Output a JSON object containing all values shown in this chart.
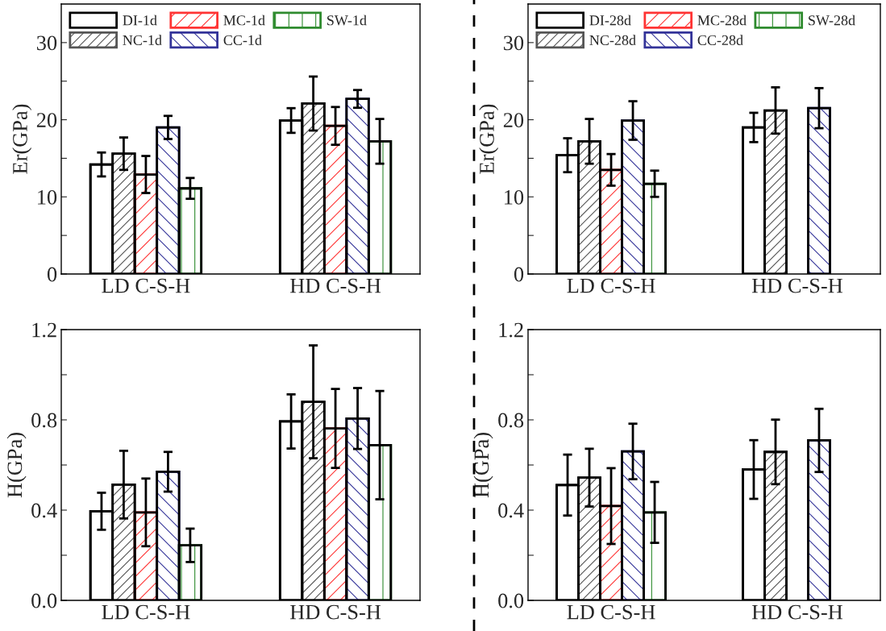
{
  "chart_data": [
    {
      "type": "bar",
      "ylabel": "Er(GPa)",
      "categories": [
        "LD C-S-H",
        "HD C-S-H"
      ],
      "ylim": [
        0,
        35
      ],
      "yticks": [
        0,
        {
          "value": 5,
          "label": null
        },
        10,
        {
          "value": 15,
          "label": null
        },
        20,
        {
          "value": 25,
          "label": null
        },
        30
      ],
      "legend": "top left",
      "series": [
        {
          "name": "DI-1d",
          "color": "#000000",
          "values": [
            14.2,
            19.9
          ],
          "errors": [
            1.55,
            1.6
          ]
        },
        {
          "name": "NC-1d",
          "color": "#555555",
          "values": [
            15.6,
            22.1
          ],
          "errors": [
            2.1,
            3.5
          ]
        },
        {
          "name": "MC-1d",
          "color": "#ff3333",
          "values": [
            12.9,
            19.2
          ],
          "errors": [
            2.4,
            2.45
          ]
        },
        {
          "name": "CC-1d",
          "color": "#333399",
          "values": [
            19.0,
            22.7
          ],
          "errors": [
            1.5,
            1.15
          ]
        },
        {
          "name": "SW-1d",
          "color": "#2e8b2e",
          "values": [
            11.1,
            17.2
          ],
          "errors": [
            1.35,
            2.9
          ]
        }
      ]
    },
    {
      "type": "bar",
      "ylabel": "Er(GPa)",
      "categories": [
        "LD C-S-H",
        "HD C-S-H"
      ],
      "ylim": [
        0,
        35
      ],
      "yticks": [
        0,
        {
          "value": 5,
          "label": null
        },
        10,
        {
          "value": 15,
          "label": null
        },
        20,
        {
          "value": 25,
          "label": null
        },
        30
      ],
      "legend": "top left",
      "series": [
        {
          "name": "DI-28d",
          "color": "#000000",
          "values": [
            15.4,
            19.0
          ],
          "errors": [
            2.2,
            1.9
          ]
        },
        {
          "name": "NC-28d",
          "color": "#555555",
          "values": [
            17.2,
            21.2
          ],
          "errors": [
            2.9,
            3.0
          ]
        },
        {
          "name": "MC-28d",
          "color": "#ff3333",
          "values": [
            13.5,
            null
          ],
          "errors": [
            2.05,
            null
          ]
        },
        {
          "name": "CC-28d",
          "color": "#333399",
          "values": [
            19.9,
            21.5
          ],
          "errors": [
            2.5,
            2.6
          ]
        },
        {
          "name": "SW-28d",
          "color": "#2e8b2e",
          "values": [
            11.7,
            null
          ],
          "errors": [
            1.7,
            null
          ]
        }
      ]
    },
    {
      "type": "bar",
      "ylabel": "H(GPa)",
      "categories": [
        "LD C-S-H",
        "HD C-S-H"
      ],
      "ylim": [
        0,
        1.2
      ],
      "yticks": [
        {
          "value": 0,
          "label": "0.0"
        },
        {
          "value": 0.2,
          "label": null
        },
        {
          "value": 0.4,
          "label": "0.4"
        },
        {
          "value": 0.6,
          "label": null
        },
        {
          "value": 0.8,
          "label": "0.8"
        },
        {
          "value": 1.0,
          "label": null
        },
        {
          "value": 1.2,
          "label": "1.2"
        }
      ],
      "series": [
        {
          "color": "#000000",
          "values": [
            0.395,
            0.793
          ],
          "errors": [
            0.082,
            0.12
          ]
        },
        {
          "color": "#555555",
          "values": [
            0.513,
            0.88
          ],
          "errors": [
            0.15,
            0.25
          ]
        },
        {
          "color": "#ff3333",
          "values": [
            0.39,
            0.762
          ],
          "errors": [
            0.15,
            0.175
          ]
        },
        {
          "color": "#333399",
          "values": [
            0.57,
            0.806
          ],
          "errors": [
            0.088,
            0.135
          ]
        },
        {
          "color": "#2e8b2e",
          "values": [
            0.244,
            0.688
          ],
          "errors": [
            0.074,
            0.24
          ]
        }
      ]
    },
    {
      "type": "bar",
      "ylabel": "H(GPa)",
      "categories": [
        "LD C-S-H",
        "HD C-S-H"
      ],
      "ylim": [
        0,
        1.2
      ],
      "yticks": [
        {
          "value": 0,
          "label": "0.0"
        },
        {
          "value": 0.2,
          "label": null
        },
        {
          "value": 0.4,
          "label": "0.4"
        },
        {
          "value": 0.6,
          "label": null
        },
        {
          "value": 0.8,
          "label": "0.8"
        },
        {
          "value": 1.0,
          "label": null
        },
        {
          "value": 1.2,
          "label": "1.2"
        }
      ],
      "series": [
        {
          "color": "#000000",
          "values": [
            0.511,
            0.58
          ],
          "errors": [
            0.135,
            0.13
          ]
        },
        {
          "color": "#555555",
          "values": [
            0.544,
            0.658
          ],
          "errors": [
            0.128,
            0.143
          ]
        },
        {
          "color": "#ff3333",
          "values": [
            0.418,
            null
          ],
          "errors": [
            0.168,
            null
          ]
        },
        {
          "color": "#333399",
          "values": [
            0.66,
            0.709
          ],
          "errors": [
            0.123,
            0.14
          ]
        },
        {
          "color": "#2e8b2e",
          "values": [
            0.39,
            null
          ],
          "errors": [
            0.135,
            null
          ]
        }
      ]
    }
  ]
}
